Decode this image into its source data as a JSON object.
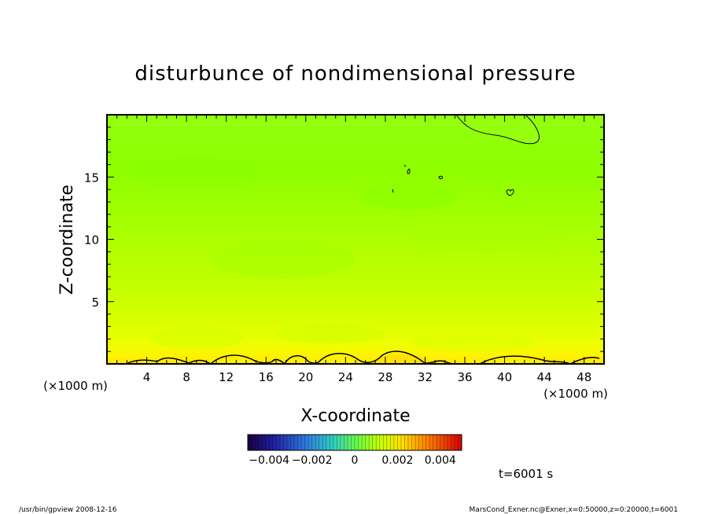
{
  "chart_data": {
    "type": "heatmap",
    "title": "disturbunce of nondimensional pressure",
    "xlabel": "X-coordinate",
    "ylabel": "Z-coordinate",
    "x_unit": "(×1000 m)",
    "x_unit_right": "(×1000 m)",
    "xlim": [
      0,
      50
    ],
    "ylim": [
      0,
      20
    ],
    "xticks": [
      4,
      8,
      12,
      16,
      20,
      24,
      28,
      32,
      36,
      40,
      44,
      48
    ],
    "yticks": [
      5,
      10,
      15
    ],
    "colorbar": {
      "range": [
        -0.005,
        0.005
      ],
      "tick_values": [
        -0.004,
        -0.002,
        0,
        0.002,
        0.004
      ],
      "tick_labels": [
        "−0.004",
        "−0.002",
        "0",
        "0.002",
        "0.004"
      ]
    },
    "field_summary": [
      {
        "z": 0.5,
        "value": 0.0025
      },
      {
        "z": 2,
        "value": 0.0015
      },
      {
        "z": 5,
        "value": 0.0008
      },
      {
        "z": 10,
        "value": 0.0002
      },
      {
        "z": 15,
        "value": -0.0001
      },
      {
        "z": 19,
        "value": -0.0003
      }
    ],
    "contour_level": 0
  },
  "annotations": {
    "time": "t=6001 s",
    "footer_left": "/usr/bin/gpview   2008-12-16",
    "footer_right": "MarsCond_Exner.nc@Exner,x=0:50000,z=0:20000,t=6001"
  },
  "colors": {
    "surface": "#ffe600",
    "lower": "#ddff00",
    "middle": "#a6ff00",
    "upper": "#8cff00",
    "top": "#96ff14"
  }
}
